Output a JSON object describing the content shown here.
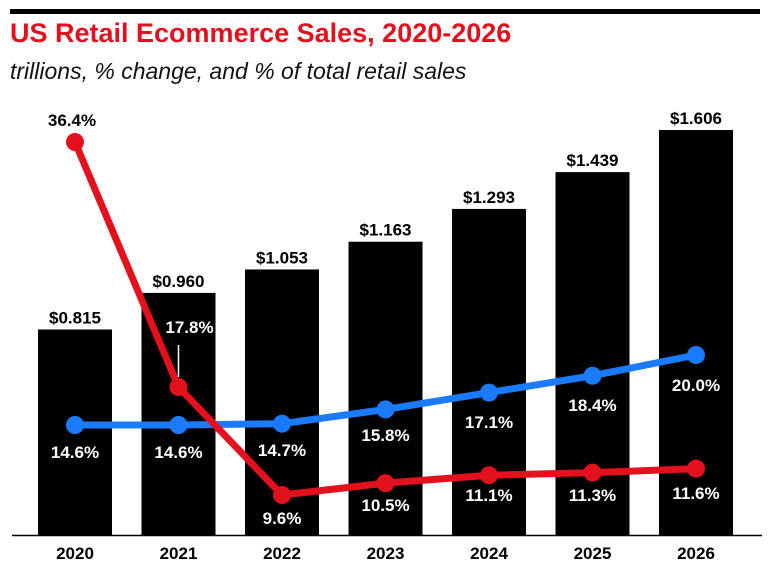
{
  "header": {
    "title": "US Retail Ecommerce Sales, 2020-2026",
    "subtitle": "trillions, % change, and % of total retail sales"
  },
  "chart_data": {
    "type": "bar",
    "categories": [
      "2020",
      "2021",
      "2022",
      "2023",
      "2024",
      "2025",
      "2026"
    ],
    "series": [
      {
        "kind": "bar",
        "values": [
          0.815,
          0.96,
          1.053,
          1.163,
          1.293,
          1.439,
          1.606
        ],
        "labels": [
          "$0.815",
          "$0.960",
          "$1.053",
          "$1.163",
          "$1.293",
          "$1.439",
          "$1.606"
        ],
        "color": "#000000"
      },
      {
        "kind": "line",
        "values": [
          36.4,
          17.8,
          9.6,
          10.5,
          11.1,
          11.3,
          11.6
        ],
        "labels": [
          "36.4%",
          "17.8%",
          "9.6%",
          "10.5%",
          "11.1%",
          "11.3%",
          "11.6%"
        ],
        "color": "#e3111d"
      },
      {
        "kind": "line",
        "values": [
          14.6,
          14.6,
          14.7,
          15.8,
          17.1,
          18.4,
          20.0
        ],
        "labels": [
          "14.6%",
          "14.6%",
          "14.7%",
          "15.8%",
          "17.1%",
          "18.4%",
          "20.0%"
        ],
        "color": "#1b7bff"
      }
    ],
    "axis_color": "#000000"
  }
}
